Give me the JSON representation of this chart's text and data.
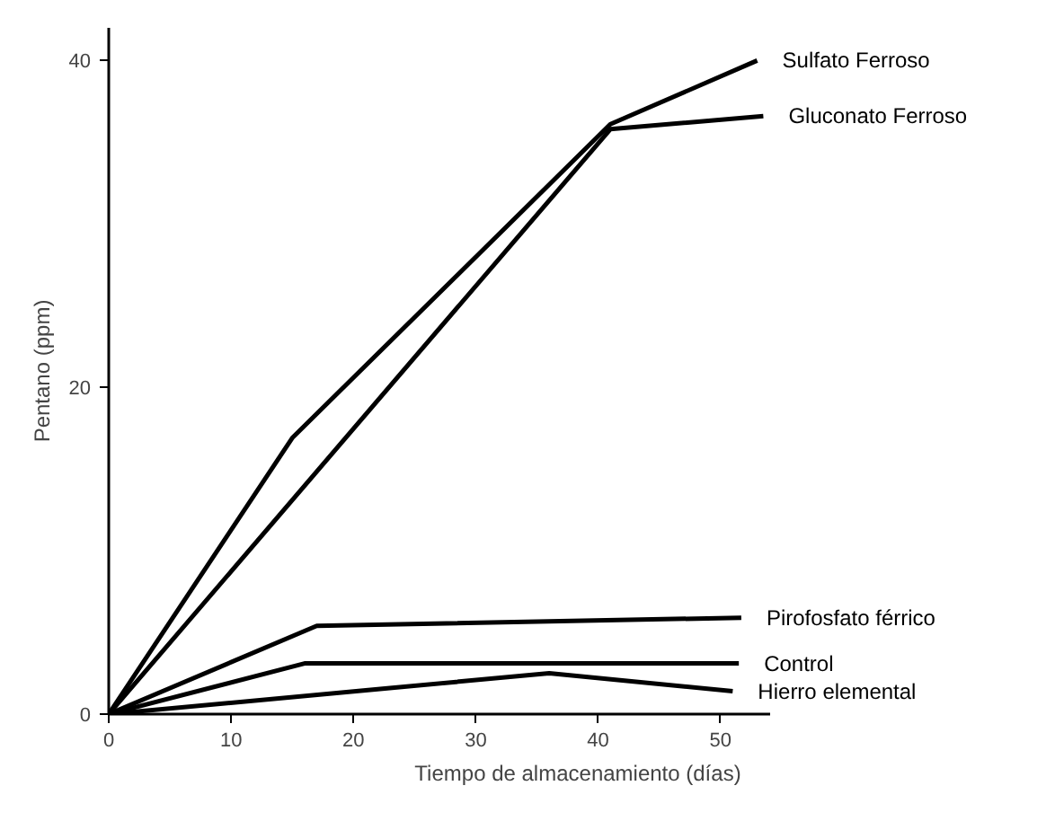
{
  "chart_data": {
    "type": "line",
    "xlabel": "Tiempo de almacenamiento (días)",
    "ylabel": "Pentano (ppm)",
    "xlim": [
      0,
      54
    ],
    "ylim": [
      0,
      42
    ],
    "xticks": [
      0,
      10,
      20,
      30,
      40,
      50
    ],
    "yticks": [
      0,
      20,
      40
    ],
    "grid": false,
    "legend": false,
    "marker": "none",
    "line_style": "solid",
    "series": [
      {
        "name": "Sulfato Ferroso",
        "color": "#000000",
        "x": [
          0,
          15,
          41,
          53
        ],
        "values": [
          0,
          16.9,
          36.1,
          40
        ]
      },
      {
        "name": "Gluconato Ferroso",
        "color": "#000000",
        "x": [
          0,
          41,
          53.5
        ],
        "values": [
          0,
          35.8,
          36.6
        ]
      },
      {
        "name": "Pirofosfato férrico",
        "color": "#000000",
        "x": [
          0,
          17,
          51.7
        ],
        "values": [
          0,
          5.4,
          5.9
        ]
      },
      {
        "name": "Control",
        "color": "#000000",
        "x": [
          0,
          16,
          51.5
        ],
        "values": [
          0,
          3.1,
          3.1
        ]
      },
      {
        "name": "Hierro elemental",
        "color": "#000000",
        "x": [
          0,
          36,
          51
        ],
        "values": [
          0,
          2.5,
          1.4
        ]
      }
    ]
  }
}
